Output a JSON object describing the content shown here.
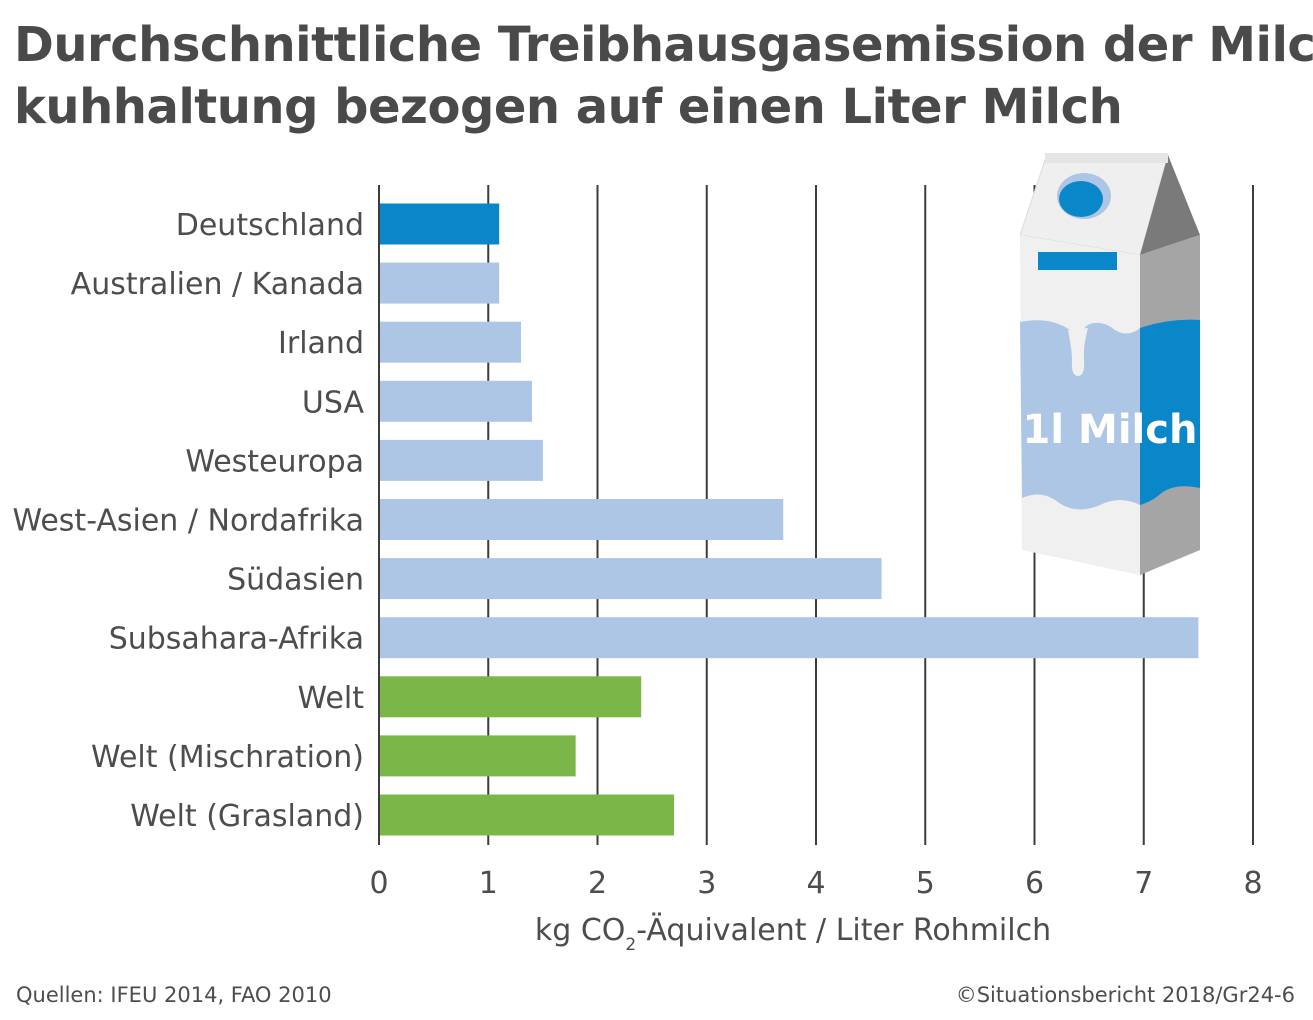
{
  "title_lines": [
    "Durchschnittliche Treibhausgasemission der Milch-",
    "kuhhaltung bezogen auf einen Liter Milch"
  ],
  "chart_data": {
    "type": "bar",
    "orientation": "horizontal",
    "categories": [
      "Deutschland",
      "Australien / Kanada",
      "Irland",
      "USA",
      "Westeuropa",
      "West-Asien / Nordafrika",
      "Südasien",
      "Subsahara-Afrika",
      "Welt",
      "Welt (Mischration)",
      "Welt (Grasland)"
    ],
    "values": [
      1.1,
      1.1,
      1.3,
      1.4,
      1.5,
      3.7,
      4.6,
      7.5,
      2.4,
      1.8,
      2.7
    ],
    "bar_colors": [
      "#0a87c9",
      "#aec6e6",
      "#aec6e6",
      "#aec6e6",
      "#aec6e6",
      "#aec6e6",
      "#aec6e6",
      "#aec6e6",
      "#7ab648",
      "#7ab648",
      "#7ab648"
    ],
    "xlim": [
      0,
      8
    ],
    "xticks": [
      0,
      1,
      2,
      3,
      4,
      5,
      6,
      7,
      8
    ],
    "xlabel": {
      "before_subscript": "kg CO",
      "subscript": "2",
      "after_subscript": "-Äquivalent / Liter Rohmilch"
    },
    "grid": "vertical lines at each tick"
  },
  "illustration": {
    "icon": "milk-carton-icon",
    "label": "1l Milch",
    "colors": {
      "carton_front": "#f0f0f0",
      "carton_side": "#a5a5a5",
      "carton_dark": "#7a7a7a",
      "milk_light": "#aec6e6",
      "milk_dark": "#0a87c9",
      "cap": "#0a87c9"
    }
  },
  "footer": {
    "source": "Quellen: IFEU 2014, FAO 2010",
    "copyright": "©Situationsbericht 2018/Gr24-6"
  }
}
